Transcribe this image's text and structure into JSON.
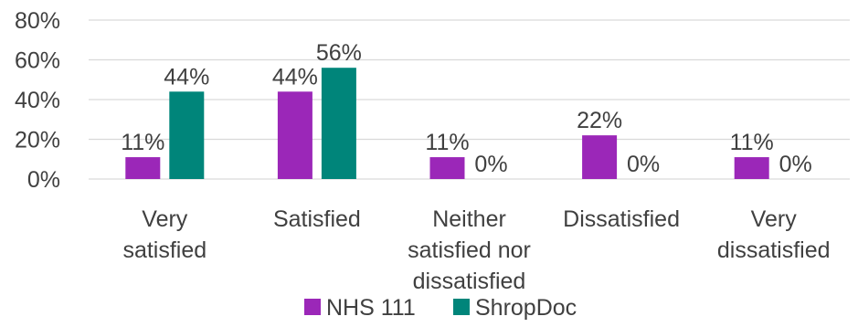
{
  "chart_data": {
    "type": "bar",
    "categories": [
      [
        "Very",
        "satisfied"
      ],
      [
        "Satisfied"
      ],
      [
        "Neither",
        "satisfied nor",
        "dissatisfied"
      ],
      [
        "Dissatisfied"
      ],
      [
        "Very",
        "dissatisfied"
      ]
    ],
    "series": [
      {
        "name": "NHS 111",
        "color": "#9b27b8",
        "values": [
          11,
          44,
          11,
          22,
          11
        ],
        "labels": [
          "11%",
          "44%",
          "11%",
          "22%",
          "11%"
        ]
      },
      {
        "name": "ShropDoc",
        "color": "#00857a",
        "values": [
          44,
          56,
          0,
          0,
          0
        ],
        "labels": [
          "44%",
          "56%",
          "0%",
          "0%",
          "0%"
        ]
      }
    ],
    "ylim": [
      0,
      80
    ],
    "yticks": [
      {
        "value": 0,
        "label": "0%"
      },
      {
        "value": 20,
        "label": "20%"
      },
      {
        "value": 40,
        "label": "40%"
      },
      {
        "value": 60,
        "label": "60%"
      },
      {
        "value": 80,
        "label": "80%"
      }
    ],
    "grid": true,
    "legend_position": "bottom"
  }
}
